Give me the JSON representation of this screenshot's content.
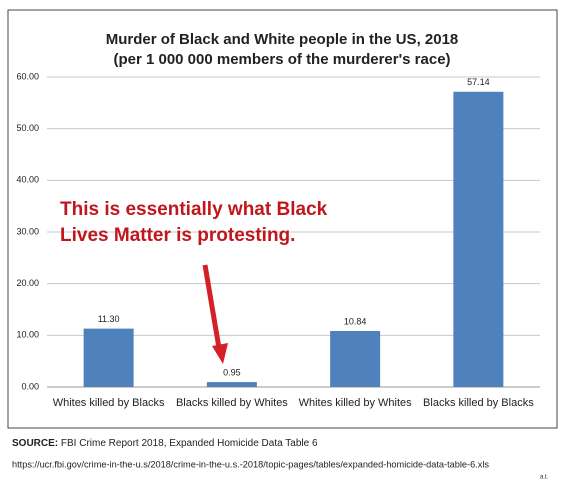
{
  "chart_data": {
    "type": "bar",
    "title": "Murder of Black and White people in the US, 2018",
    "subtitle": "(per 1 000 000 members of the murderer's race)",
    "categories": [
      "Whites killed by Blacks",
      "Blacks killed by Whites",
      "Whites killed by Whites",
      "Blacks killed by Blacks"
    ],
    "values": [
      11.3,
      0.95,
      10.84,
      57.14
    ],
    "value_labels": [
      "11.30",
      "0.95",
      "10.84",
      "57.14"
    ],
    "color": "#4f81bd",
    "ylim": [
      0,
      60
    ],
    "yticks": [
      {
        "value": 0,
        "label": "0.00"
      },
      {
        "value": 10,
        "label": "10.00"
      },
      {
        "value": 20,
        "label": "20.00"
      },
      {
        "value": 30,
        "label": "30.00"
      },
      {
        "value": 40,
        "label": "40.00"
      },
      {
        "value": 50,
        "label": "50.00"
      },
      {
        "value": 60,
        "label": "60.00"
      }
    ],
    "grid": true,
    "annotation": [
      "This is essentially what Black",
      "Lives Matter is protesting."
    ],
    "source_label": "SOURCE:",
    "source": "FBI Crime Report 2018, Expanded Homicide Data Table 6",
    "source_url": "https://ucr.fbi.gov/crime-in-the-u.s/2018/crime-in-the-u.s.-2018/topic-pages/tables/expanded-homicide-data-table-6.xls",
    "signature": "a.t."
  }
}
